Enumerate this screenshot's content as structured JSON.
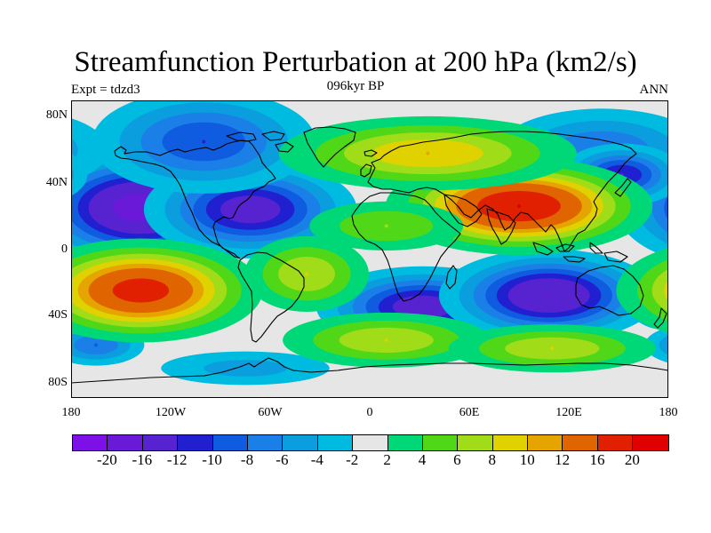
{
  "plot": {
    "title": "Streamfunction Perturbation at 200 hPa (km2/s)",
    "subtitle": "096kyr BP",
    "left_label": "Expt = tdzd3",
    "right_label": "ANN"
  },
  "axes": {
    "lat_ticks": [
      "80N",
      "40N",
      "0",
      "40S",
      "80S"
    ],
    "lon_ticks": [
      "180",
      "120W",
      "60W",
      "0",
      "60E",
      "120E",
      "180"
    ]
  },
  "colorbar": {
    "labels": [
      "-20",
      "-16",
      "-12",
      "-10",
      "-8",
      "-6",
      "-4",
      "-2",
      "2",
      "4",
      "6",
      "8",
      "10",
      "12",
      "16",
      "20"
    ],
    "colors": [
      "#7d10e6",
      "#6a19d8",
      "#5722d0",
      "#2020d0",
      "#0f5ce0",
      "#1a80e8",
      "#0a9ede",
      "#00bbe0",
      "#e6e6e6",
      "#00d878",
      "#50d818",
      "#a0dc18",
      "#e0d200",
      "#e6a400",
      "#e06400",
      "#e02000",
      "#e00000"
    ]
  },
  "map_data": {
    "projection": "cylindrical-equidistant",
    "lon_range": [
      -180,
      180
    ],
    "lat_range": [
      -90,
      90
    ],
    "field_units": "km2/s",
    "anomalies": [
      {
        "name": "north-pacific-low",
        "lon": -138,
        "lat": 25,
        "peak": -18,
        "sx": 28,
        "sy": 14
      },
      {
        "name": "north-atlantic-low",
        "lon": -72,
        "lat": 24,
        "peak": -14,
        "sx": 26,
        "sy": 12
      },
      {
        "name": "arctic-canada-low",
        "lon": -100,
        "lat": 65,
        "peak": -10,
        "sx": 30,
        "sy": 14
      },
      {
        "name": "arctic-siberia-low",
        "lon": 140,
        "lat": 60,
        "peak": -8,
        "sx": 30,
        "sy": 12
      },
      {
        "name": "west-pacific-low",
        "lon": 152,
        "lat": 45,
        "peak": -12,
        "sx": 16,
        "sy": 8
      },
      {
        "name": "southern-africa-low",
        "lon": 32,
        "lat": -35,
        "peak": -14,
        "sx": 26,
        "sy": 10
      },
      {
        "name": "indian-ocean-low",
        "lon": 108,
        "lat": -28,
        "peak": -16,
        "sx": 26,
        "sy": 11
      },
      {
        "name": "east-pacific-south-low",
        "lon": 178,
        "lat": -28,
        "peak": -8,
        "sx": 12,
        "sy": 10
      },
      {
        "name": "southern-ocean-low-west",
        "lon": -165,
        "lat": -58,
        "peak": -8,
        "sx": 14,
        "sy": 6
      },
      {
        "name": "antarctic-low",
        "lon": -75,
        "lat": -72,
        "peak": -5,
        "sx": 30,
        "sy": 6
      },
      {
        "name": "asian-high",
        "lon": 90,
        "lat": 26,
        "peak": 20,
        "sx": 30,
        "sy": 11
      },
      {
        "name": "eurasian-high",
        "lon": 35,
        "lat": 58,
        "peak": 10,
        "sx": 40,
        "sy": 10
      },
      {
        "name": "atlantic-africa-high",
        "lon": 10,
        "lat": 14,
        "peak": 6,
        "sx": 25,
        "sy": 8
      },
      {
        "name": "south-pacific-high",
        "lon": -138,
        "lat": -25,
        "peak": 18,
        "sx": 28,
        "sy": 12
      },
      {
        "name": "south-america-high",
        "lon": -38,
        "lat": -15,
        "peak": 8,
        "sx": 18,
        "sy": 11
      },
      {
        "name": "southern-ocean-high-atlantic",
        "lon": 10,
        "lat": -55,
        "peak": 8,
        "sx": 30,
        "sy": 8
      },
      {
        "name": "southern-ocean-high-indian",
        "lon": 110,
        "lat": -60,
        "peak": 8,
        "sx": 30,
        "sy": 7
      }
    ]
  }
}
